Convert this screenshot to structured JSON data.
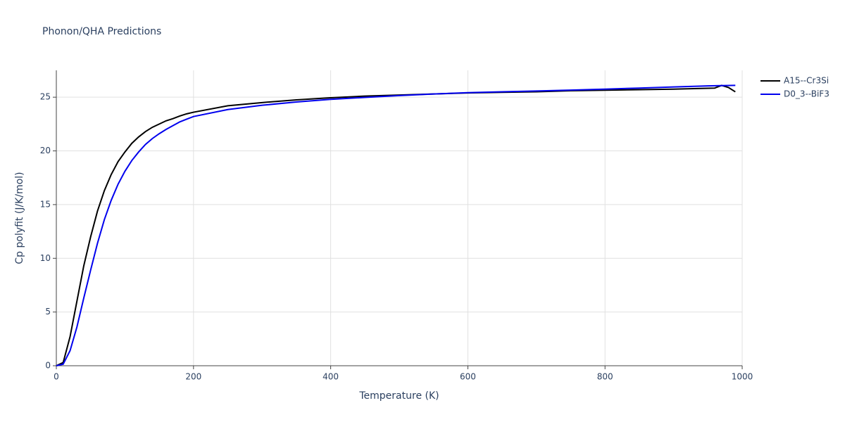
{
  "chart_data": {
    "type": "line",
    "title": "Phonon/QHA Predictions",
    "x_label": "Temperature (K)",
    "y_label": "Cp polyfit (J/K/mol)",
    "xlim": [
      0,
      1000
    ],
    "xticks": [
      0,
      200,
      400,
      600,
      800,
      1000
    ],
    "ylim": [
      0,
      27.5
    ],
    "yticks": [
      0,
      5,
      10,
      15,
      20,
      25
    ],
    "grid": true,
    "legend": "top-right",
    "series": [
      {
        "name": "A15--Cr3Si",
        "color": "#000000",
        "x": [
          0,
          10,
          20,
          30,
          40,
          50,
          60,
          70,
          80,
          90,
          100,
          110,
          120,
          130,
          140,
          150,
          160,
          170,
          180,
          190,
          200,
          250,
          300,
          350,
          400,
          450,
          500,
          550,
          600,
          650,
          700,
          750,
          800,
          850,
          900,
          960,
          970,
          980,
          990
        ],
        "values": [
          0,
          0.3,
          2.7,
          6.0,
          9.3,
          12.0,
          14.4,
          16.3,
          17.8,
          19.0,
          19.9,
          20.7,
          21.3,
          21.8,
          22.2,
          22.5,
          22.8,
          23.0,
          23.25,
          23.45,
          23.6,
          24.2,
          24.5,
          24.75,
          24.95,
          25.1,
          25.2,
          25.3,
          25.4,
          25.45,
          25.5,
          25.6,
          25.65,
          25.7,
          25.75,
          25.85,
          26.1,
          25.9,
          25.5
        ]
      },
      {
        "name": "D0_3--BiF3",
        "color": "#0000ee",
        "x": [
          0,
          10,
          20,
          30,
          40,
          50,
          60,
          70,
          80,
          90,
          100,
          110,
          120,
          130,
          140,
          150,
          160,
          170,
          180,
          190,
          200,
          250,
          300,
          350,
          400,
          450,
          500,
          550,
          600,
          650,
          700,
          750,
          800,
          850,
          900,
          950,
          990
        ],
        "values": [
          0,
          0.15,
          1.4,
          3.6,
          6.3,
          8.9,
          11.4,
          13.6,
          15.4,
          16.9,
          18.1,
          19.1,
          19.9,
          20.6,
          21.15,
          21.6,
          22.0,
          22.35,
          22.7,
          22.95,
          23.2,
          23.85,
          24.25,
          24.55,
          24.8,
          24.98,
          25.15,
          25.3,
          25.42,
          25.5,
          25.58,
          25.66,
          25.75,
          25.85,
          25.95,
          26.05,
          26.1
        ]
      }
    ]
  }
}
